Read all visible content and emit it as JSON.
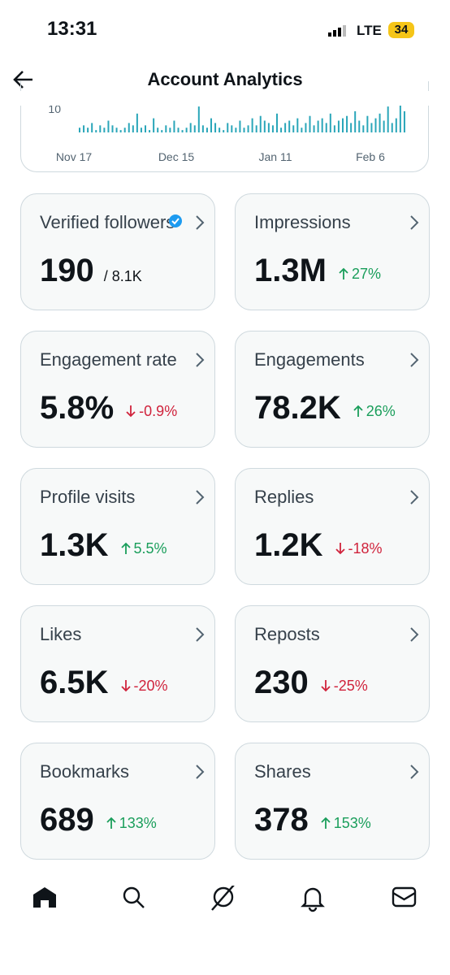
{
  "status_bar": {
    "time": "13:31",
    "network": "LTE",
    "battery": "34"
  },
  "header": {
    "title": "Account Analytics"
  },
  "chart": {
    "yticks": [
      10
    ],
    "x_labels": [
      "Nov 17",
      "Dec 15",
      "Jan 11",
      "Feb 6"
    ],
    "values": [
      2,
      3,
      2,
      4,
      1,
      3,
      2,
      5,
      3,
      2,
      1,
      2,
      4,
      3,
      8,
      2,
      3,
      1,
      6,
      2,
      1,
      3,
      2,
      5,
      2,
      1,
      2,
      4,
      3,
      11,
      3,
      2,
      6,
      4,
      2,
      1,
      4,
      3,
      2,
      5,
      2,
      3,
      6,
      3,
      7,
      5,
      4,
      3,
      8,
      2,
      4,
      5,
      3,
      6,
      2,
      4,
      7,
      3,
      5,
      6,
      4,
      8,
      3,
      5,
      6,
      7,
      4,
      9,
      5,
      3,
      7,
      4,
      6,
      8,
      5,
      11,
      4,
      6,
      12,
      9
    ]
  },
  "metrics": [
    {
      "title": "Verified followers",
      "value": "190",
      "total": "/ 8.1K"
    },
    {
      "title": "Impressions",
      "value": "1.3M",
      "change": "27%"
    },
    {
      "title": "Engagement rate",
      "value": "5.8%",
      "change": "-0.9%"
    },
    {
      "title": "Engagements",
      "value": "78.2K",
      "change": "26%"
    },
    {
      "title": "Profile visits",
      "value": "1.3K",
      "change": "5.5%"
    },
    {
      "title": "Replies",
      "value": "1.2K",
      "change": "-18%"
    },
    {
      "title": "Likes",
      "value": "6.5K",
      "change": "-20%"
    },
    {
      "title": "Reposts",
      "value": "230",
      "change": "-25%"
    },
    {
      "title": "Bookmarks",
      "value": "689",
      "change": "133%"
    },
    {
      "title": "Shares",
      "value": "378",
      "change": "153%"
    }
  ]
}
